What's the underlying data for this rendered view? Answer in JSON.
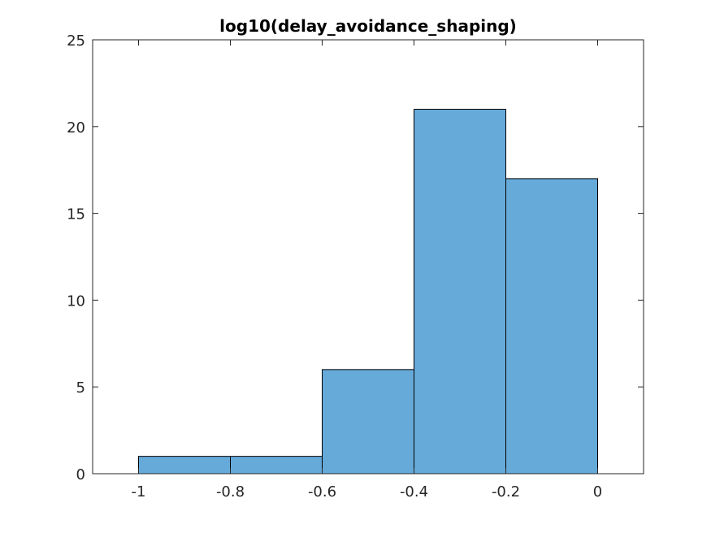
{
  "chart_data": {
    "type": "histogram",
    "title": "log10(delay_avoidance_shaping)",
    "xlabel": "",
    "ylabel": "",
    "bin_edges": [
      -1.0,
      -0.8,
      -0.6,
      -0.4,
      -0.2,
      0.0
    ],
    "counts": [
      1,
      1,
      6,
      21,
      17
    ],
    "xlim": [
      -1.1,
      0.1
    ],
    "ylim": [
      0,
      25
    ],
    "xticks": [
      "-1",
      "-0.8",
      "-0.6",
      "-0.4",
      "-0.2",
      "0"
    ],
    "yticks": [
      "0",
      "5",
      "10",
      "15",
      "20",
      "25"
    ],
    "grid": false,
    "bar_color": "#66AADA",
    "edge_color": "#000000"
  }
}
